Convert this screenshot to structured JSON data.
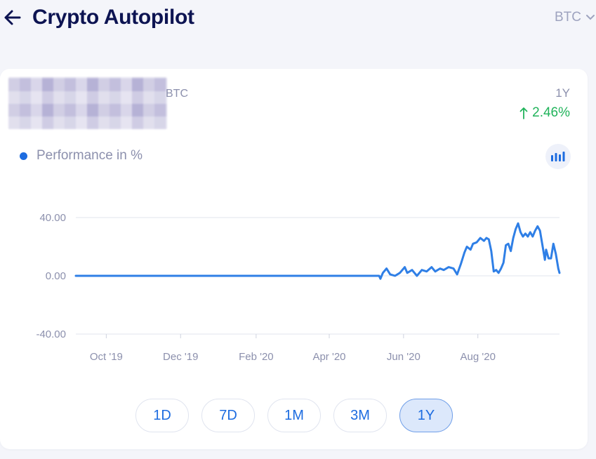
{
  "header": {
    "title": "Crypto Autopilot",
    "coin_select": "BTC"
  },
  "summary": {
    "coin": "BTC",
    "period": "1Y",
    "change": "2.46%",
    "change_direction": "up",
    "change_color": "#21b35b"
  },
  "legend": {
    "label": "Performance in %",
    "color": "#1d6ce0"
  },
  "chart_toggle_icon": "bar-chart-icon",
  "chart_data": {
    "type": "line",
    "title": "",
    "xlabel": "",
    "ylabel": "",
    "ylim": [
      -40,
      40
    ],
    "y_ticks": [
      "40.00",
      "0.00",
      "-40.00"
    ],
    "x_ticks": [
      "Oct '19",
      "Dec '19",
      "Feb '20",
      "Apr '20",
      "Jun '20",
      "Aug '20"
    ],
    "series": [
      {
        "color": "#2f7fe6",
        "points": [
          [
            "2019-09-06",
            0
          ],
          [
            "2020-05-12",
            0
          ],
          [
            "2020-05-13",
            -2
          ],
          [
            "2020-05-15",
            2
          ],
          [
            "2020-05-18",
            5
          ],
          [
            "2020-05-21",
            1
          ],
          [
            "2020-05-25",
            0
          ],
          [
            "2020-05-29",
            2
          ],
          [
            "2020-06-02",
            6
          ],
          [
            "2020-06-04",
            2
          ],
          [
            "2020-06-08",
            4
          ],
          [
            "2020-06-12",
            0
          ],
          [
            "2020-06-16",
            4
          ],
          [
            "2020-06-20",
            3
          ],
          [
            "2020-06-24",
            6
          ],
          [
            "2020-06-27",
            3
          ],
          [
            "2020-07-01",
            5
          ],
          [
            "2020-07-04",
            4
          ],
          [
            "2020-07-08",
            6
          ],
          [
            "2020-07-12",
            5
          ],
          [
            "2020-07-15",
            1
          ],
          [
            "2020-07-18",
            8
          ],
          [
            "2020-07-21",
            16
          ],
          [
            "2020-07-23",
            20
          ],
          [
            "2020-07-26",
            18
          ],
          [
            "2020-07-28",
            22
          ],
          [
            "2020-07-31",
            23
          ],
          [
            "2020-08-03",
            26
          ],
          [
            "2020-08-06",
            24
          ],
          [
            "2020-08-08",
            26
          ],
          [
            "2020-08-10",
            25
          ],
          [
            "2020-08-12",
            17
          ],
          [
            "2020-08-14",
            3
          ],
          [
            "2020-08-16",
            4
          ],
          [
            "2020-08-18",
            2
          ],
          [
            "2020-08-20",
            5
          ],
          [
            "2020-08-22",
            9
          ],
          [
            "2020-08-24",
            21
          ],
          [
            "2020-08-26",
            22
          ],
          [
            "2020-08-28",
            17
          ],
          [
            "2020-08-30",
            26
          ],
          [
            "2020-09-01",
            32
          ],
          [
            "2020-09-03",
            36
          ],
          [
            "2020-09-05",
            30
          ],
          [
            "2020-09-07",
            27
          ],
          [
            "2020-09-09",
            29
          ],
          [
            "2020-09-11",
            27
          ],
          [
            "2020-09-13",
            30
          ],
          [
            "2020-09-15",
            27
          ],
          [
            "2020-09-17",
            31
          ],
          [
            "2020-09-19",
            34
          ],
          [
            "2020-09-21",
            31
          ],
          [
            "2020-09-23",
            21
          ],
          [
            "2020-09-25",
            11
          ],
          [
            "2020-09-26",
            18
          ],
          [
            "2020-09-28",
            12
          ],
          [
            "2020-09-30",
            12
          ],
          [
            "2020-10-02",
            22
          ],
          [
            "2020-10-04",
            15
          ],
          [
            "2020-10-06",
            5
          ],
          [
            "2020-10-07",
            2
          ]
        ]
      }
    ]
  },
  "period_buttons": [
    "1D",
    "7D",
    "1M",
    "3M",
    "1Y"
  ],
  "active_period": "1Y"
}
